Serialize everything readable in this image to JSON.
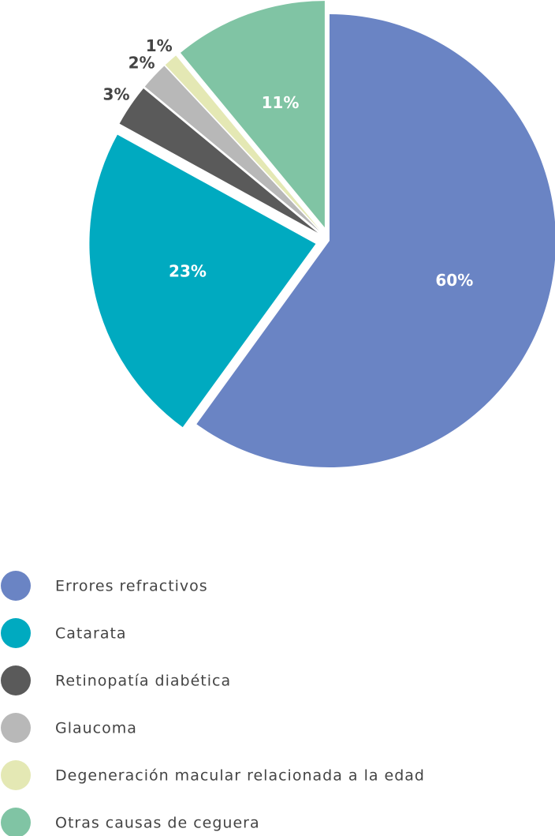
{
  "chart_data": {
    "type": "pie",
    "categories": [
      "Errores refractivos",
      "Catarata",
      "Retinopatía diabética",
      "Glaucoma",
      "Degeneración macular relacionada a la edad",
      "Otras causas de ceguera"
    ],
    "values": [
      60,
      23,
      3,
      2,
      1,
      11
    ],
    "value_labels": [
      "60%",
      "23%",
      "3%",
      "2%",
      "1%",
      "11%"
    ],
    "colors": [
      "#6a84c4",
      "#00aac0",
      "#5a5a5a",
      "#b8b8b8",
      "#e4e8b4",
      "#80c4a4"
    ],
    "legend": "bottom-left"
  }
}
